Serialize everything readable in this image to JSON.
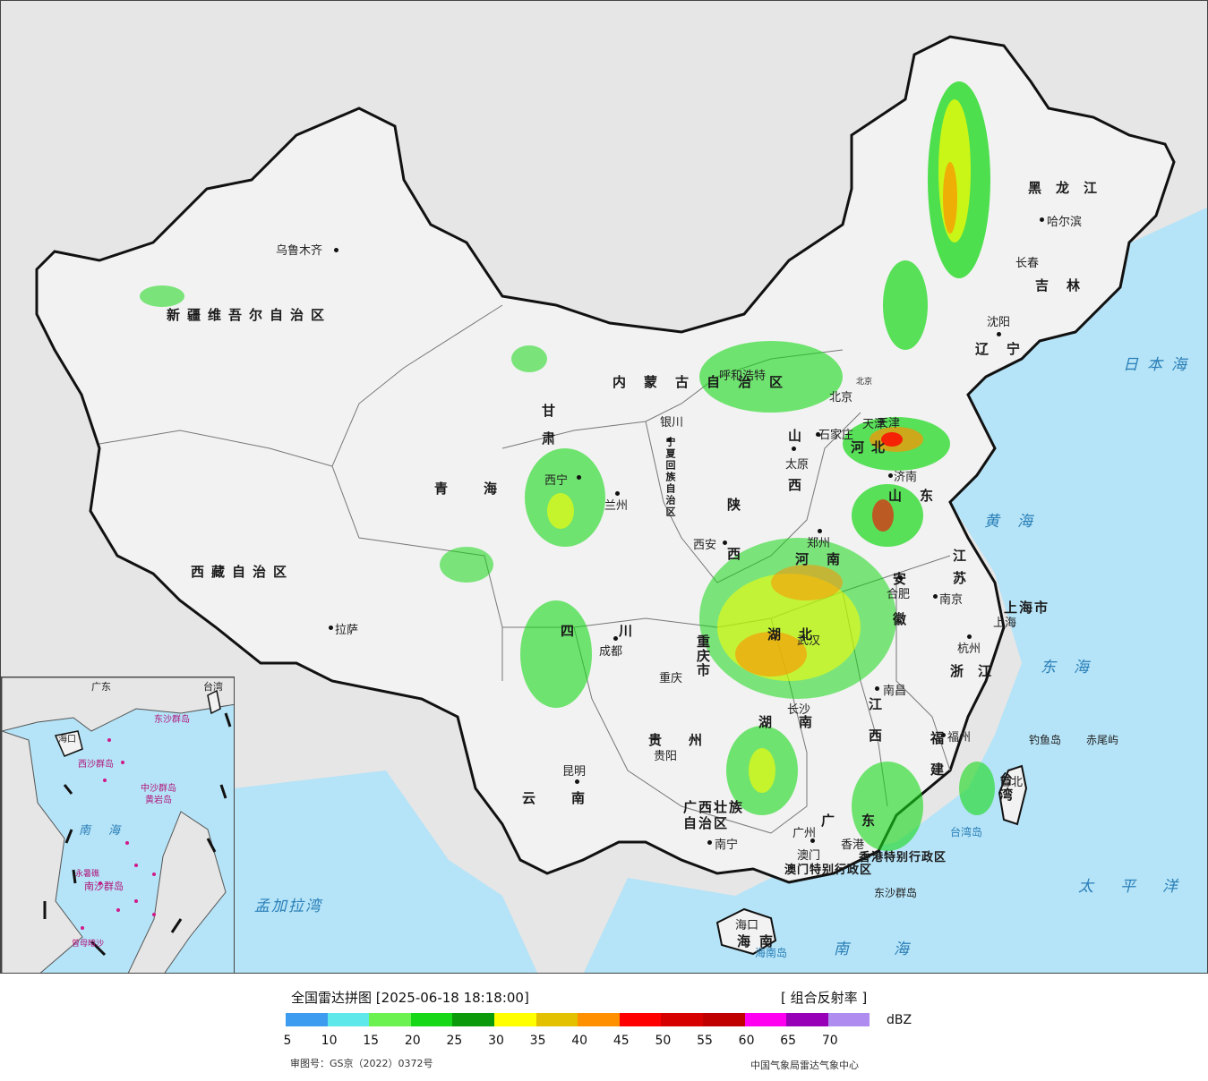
{
  "map": {
    "title": "全国雷达拼图",
    "datetime": "[2025-06-18 18:18:00]",
    "product": "[ 组合反射率 ]",
    "unit": "dBZ",
    "approval_number": "审图号：GS京（2022）0372号",
    "issuer": "中国气象局雷达气象中心"
  },
  "colors": {
    "sea": "#b5e3f7",
    "land_outside": "#e6e6e6",
    "china_land": "#f2f2f2",
    "border": "#111111"
  },
  "legend": {
    "ticks": [
      "5",
      "10",
      "15",
      "20",
      "25",
      "30",
      "35",
      "40",
      "45",
      "50",
      "55",
      "60",
      "65",
      "70"
    ],
    "swatches": [
      "#3d9bf0",
      "#5ee8ea",
      "#6cf250",
      "#17d817",
      "#0a9a0a",
      "#ffff00",
      "#e3c000",
      "#ff9000",
      "#ff0000",
      "#d60000",
      "#c00000",
      "#ff00f0",
      "#9800b8",
      "#ae8cf0"
    ]
  },
  "provinces": [
    "新疆维吾尔自治区",
    "西藏自治区",
    "青海",
    "甘肃",
    "内蒙古自治区",
    "黑龙江",
    "吉林",
    "辽宁",
    "宁夏回族自治区",
    "陕西",
    "山西",
    "河北",
    "山东",
    "河南",
    "四川",
    "重庆市",
    "湖北",
    "安徽",
    "江苏",
    "上海市",
    "浙江",
    "湖南",
    "江西",
    "福建",
    "贵州",
    "云南",
    "广西壮族自治区",
    "广东",
    "海南",
    "台湾",
    "香港特别行政区",
    "澳门特别行政区",
    "天津",
    "北京"
  ],
  "cities": [
    "乌鲁木齐",
    "拉萨",
    "西宁",
    "兰州",
    "银川",
    "呼和浩特",
    "北京",
    "天津",
    "石家庄",
    "太原",
    "济南",
    "郑州",
    "西安",
    "合肥",
    "南京",
    "上海",
    "杭州",
    "成都",
    "重庆",
    "武汉",
    "长沙",
    "南昌",
    "福州",
    "贵阳",
    "昆明",
    "南宁",
    "广州",
    "澳门",
    "香港",
    "海口",
    "台北",
    "哈尔滨",
    "长春",
    "沈阳"
  ],
  "seas": [
    "日本海",
    "黄海",
    "东海",
    "太平洋",
    "南海",
    "孟加拉湾"
  ],
  "islands": [
    "钓鱼岛",
    "赤尾屿",
    "台湾岛",
    "东沙群岛",
    "海南岛"
  ],
  "inset_labels": [
    "广东",
    "台湾",
    "海口",
    "东沙群岛",
    "西沙群岛",
    "中沙群岛",
    "黄岩岛",
    "南海",
    "南沙群岛",
    "永暑礁",
    "曾母暗沙"
  ]
}
